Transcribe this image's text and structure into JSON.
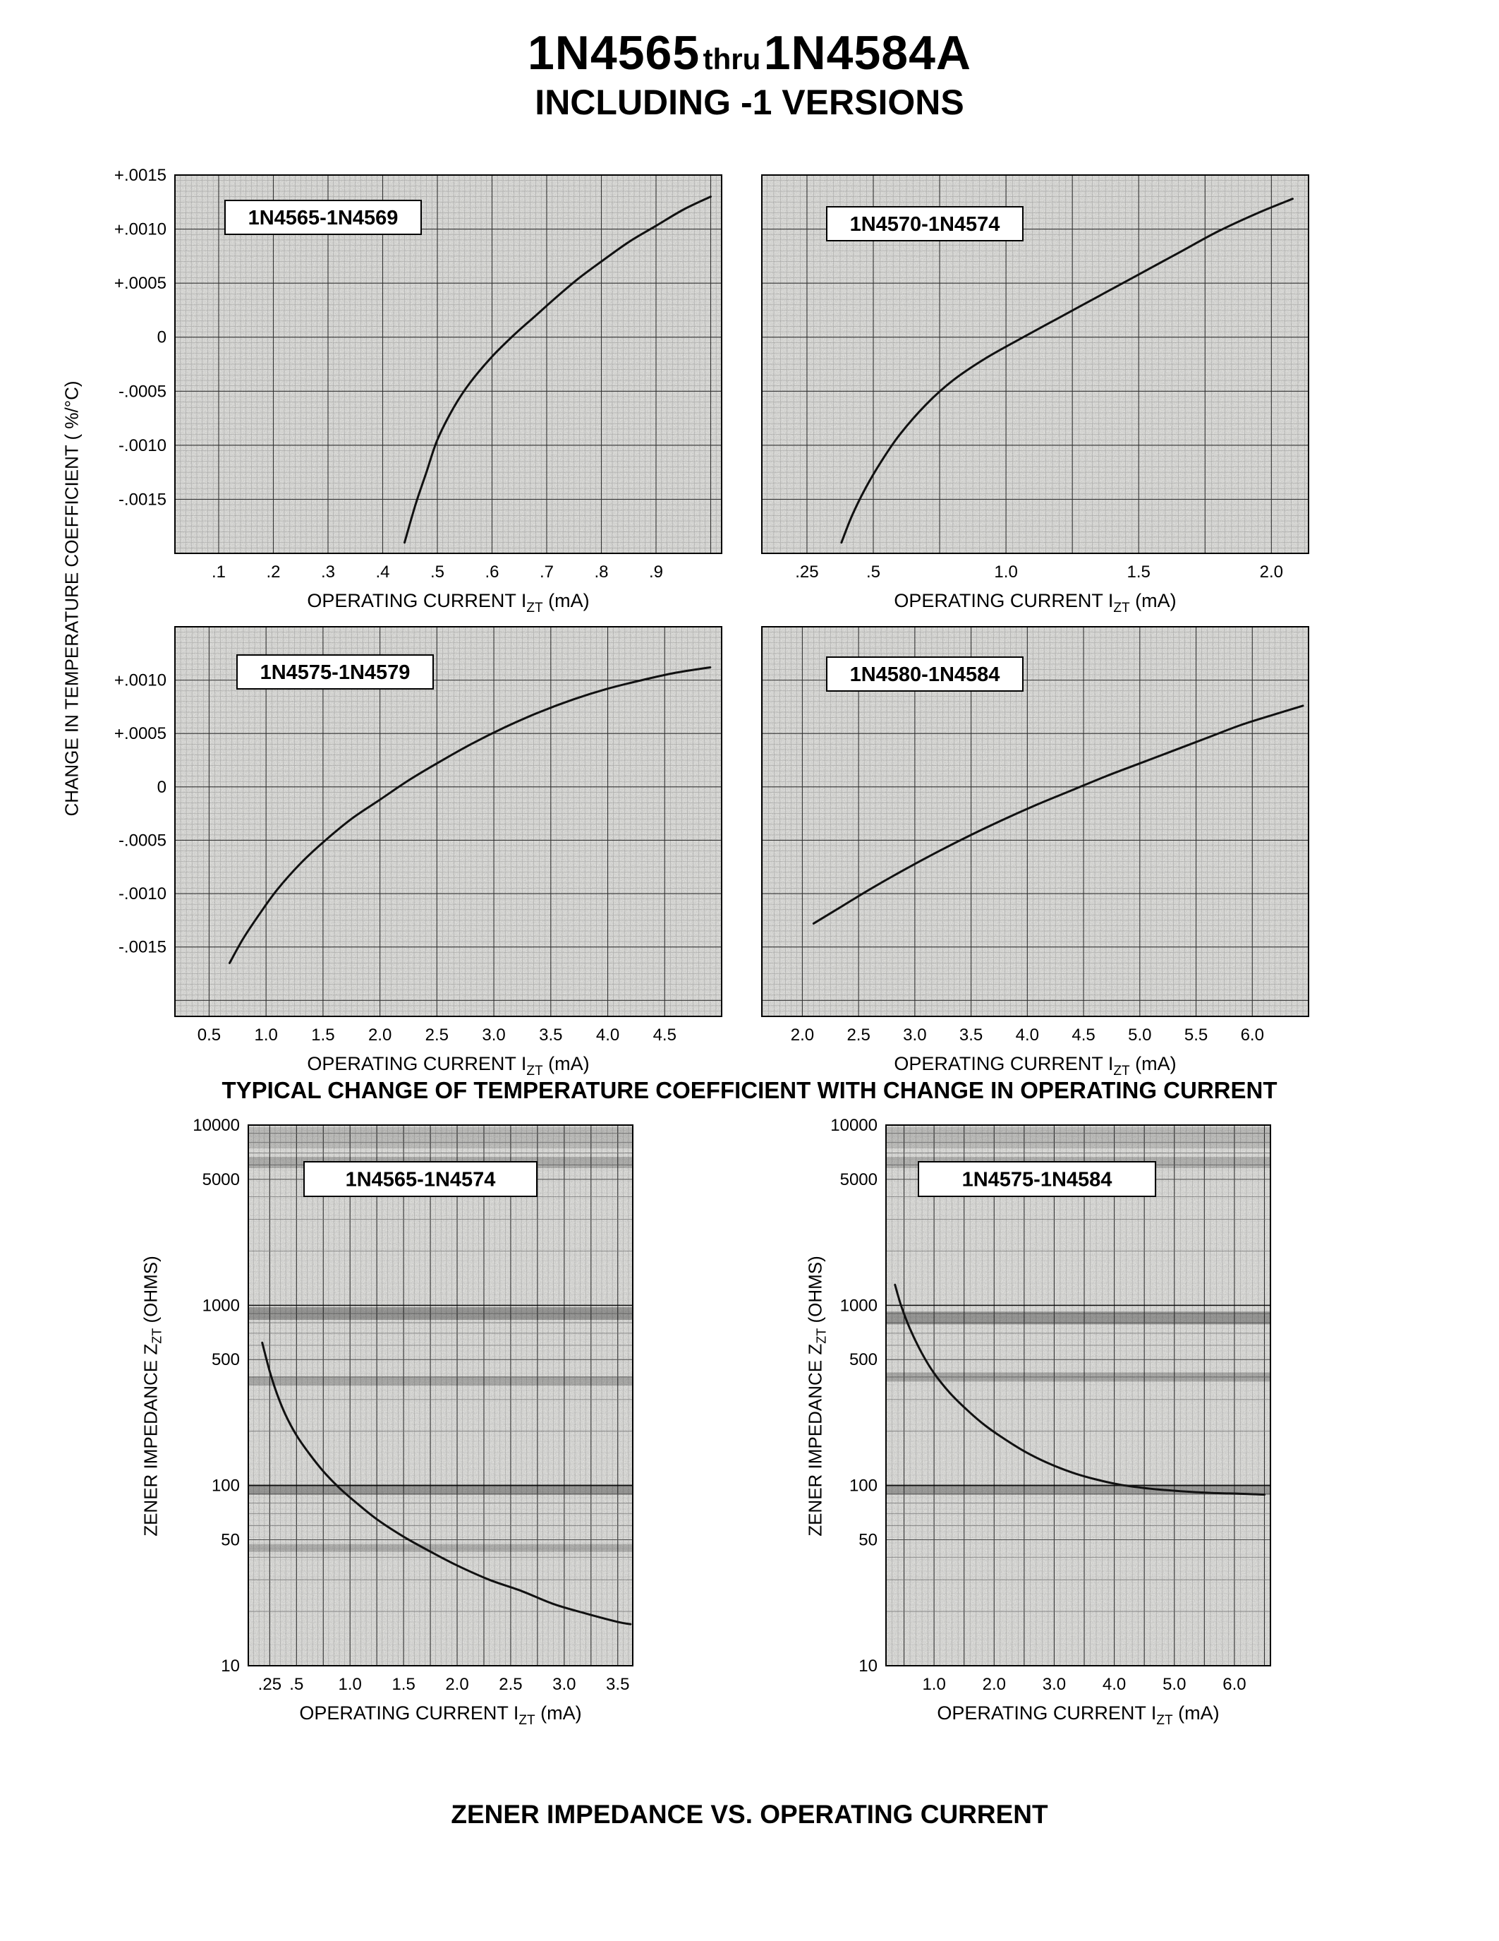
{
  "page": {
    "title_main": "1N4565",
    "title_thru": "thru",
    "title_end": "1N4584A",
    "subtitle": "INCLUDING -1 VERSIONS",
    "caption_tc": "TYPICAL CHANGE OF TEMPERATURE COEFFICIENT WITH CHANGE IN OPERATING CURRENT",
    "caption_zz": "ZENER IMPEDANCE VS. OPERATING CURRENT",
    "tc_y_axis_title": "CHANGE IN TEMPERATURE COEFFICIENT ( %/°C)",
    "zz_y_axis_title": {
      "pre": "ZENER IMPEDANCE Z",
      "sub": "ZT",
      "post": " (OHMS)"
    },
    "x_axis_title": {
      "pre": "OPERATING CURRENT I",
      "sub": "ZT",
      "post": " (mA)"
    }
  },
  "chart_data": [
    {
      "id": "tc1",
      "type": "line",
      "title": "1N4565-1N4569",
      "xlabel": "OPERATING CURRENT IZT (mA)",
      "ylabel": "CHANGE IN TEMPERATURE COEFFICIENT (%/°C)",
      "yscale": "linear",
      "xlim": [
        0.02,
        1.02
      ],
      "ylim": [
        -0.002,
        0.0015
      ],
      "grid": true,
      "xticks": [
        {
          "v": 0.1,
          "label": ".1"
        },
        {
          "v": 0.2,
          "label": ".2"
        },
        {
          "v": 0.3,
          "label": ".3"
        },
        {
          "v": 0.4,
          "label": ".4"
        },
        {
          "v": 0.5,
          "label": ".5"
        },
        {
          "v": 0.6,
          "label": ".6"
        },
        {
          "v": 0.7,
          "label": ".7"
        },
        {
          "v": 0.8,
          "label": ".8"
        },
        {
          "v": 0.9,
          "label": ".9"
        }
      ],
      "yticks": [
        {
          "v": 0.0015,
          "label": "+.0015"
        },
        {
          "v": 0.001,
          "label": "+.0010"
        },
        {
          "v": 0.0005,
          "label": "+.0005"
        },
        {
          "v": 0,
          "label": "0"
        },
        {
          "v": -0.0005,
          "label": "-.0005"
        },
        {
          "v": -0.001,
          "label": "-.0010"
        },
        {
          "v": -0.0015,
          "label": "-.0015"
        }
      ],
      "series": [
        {
          "name": "typical",
          "points": [
            [
              0.44,
              -0.0019
            ],
            [
              0.46,
              -0.00155
            ],
            [
              0.48,
              -0.00125
            ],
            [
              0.5,
              -0.00095
            ],
            [
              0.53,
              -0.00065
            ],
            [
              0.56,
              -0.00042
            ],
            [
              0.6,
              -0.00018
            ],
            [
              0.64,
              2e-05
            ],
            [
              0.68,
              0.0002
            ],
            [
              0.72,
              0.00038
            ],
            [
              0.76,
              0.00055
            ],
            [
              0.8,
              0.0007
            ],
            [
              0.85,
              0.00088
            ],
            [
              0.9,
              0.00103
            ],
            [
              0.95,
              0.00118
            ],
            [
              1.0,
              0.0013
            ]
          ]
        }
      ]
    },
    {
      "id": "tc2",
      "type": "line",
      "title": "1N4570-1N4574",
      "xlabel": "OPERATING CURRENT IZT (mA)",
      "ylabel": "CHANGE IN TEMPERATURE COEFFICIENT (%/°C)",
      "yscale": "linear",
      "xlim": [
        0.08,
        2.14
      ],
      "ylim": [
        -0.002,
        0.0015
      ],
      "grid": true,
      "xticks": [
        {
          "v": 0.25,
          "label": ".25"
        },
        {
          "v": 0.5,
          "label": ".5"
        },
        {
          "v": 1.0,
          "label": "1.0"
        },
        {
          "v": 1.5,
          "label": "1.5"
        },
        {
          "v": 2.0,
          "label": "2.0"
        }
      ],
      "yticks": [],
      "series": [
        {
          "name": "typical",
          "points": [
            [
              0.38,
              -0.0019
            ],
            [
              0.42,
              -0.00165
            ],
            [
              0.47,
              -0.0014
            ],
            [
              0.53,
              -0.00115
            ],
            [
              0.6,
              -0.0009
            ],
            [
              0.7,
              -0.00062
            ],
            [
              0.8,
              -0.0004
            ],
            [
              0.92,
              -0.0002
            ],
            [
              1.05,
              -2e-05
            ],
            [
              1.2,
              0.00018
            ],
            [
              1.35,
              0.00038
            ],
            [
              1.5,
              0.00058
            ],
            [
              1.65,
              0.00078
            ],
            [
              1.8,
              0.00098
            ],
            [
              1.95,
              0.00115
            ],
            [
              2.08,
              0.00128
            ]
          ]
        }
      ]
    },
    {
      "id": "tc3",
      "type": "line",
      "title": "1N4575-1N4579",
      "xlabel": "OPERATING CURRENT IZT (mA)",
      "ylabel": "CHANGE IN TEMPERATURE COEFFICIENT (%/°C)",
      "yscale": "linear",
      "xlim": [
        0.2,
        5.0
      ],
      "ylim": [
        -0.00215,
        0.0015
      ],
      "grid": true,
      "xticks": [
        {
          "v": 0.5,
          "label": "0.5"
        },
        {
          "v": 1.0,
          "label": "1.0"
        },
        {
          "v": 1.5,
          "label": "1.5"
        },
        {
          "v": 2.0,
          "label": "2.0"
        },
        {
          "v": 2.5,
          "label": "2.5"
        },
        {
          "v": 3.0,
          "label": "3.0"
        },
        {
          "v": 3.5,
          "label": "3.5"
        },
        {
          "v": 4.0,
          "label": "4.0"
        },
        {
          "v": 4.5,
          "label": "4.5"
        }
      ],
      "yticks": [
        {
          "v": 0.001,
          "label": "+.0010"
        },
        {
          "v": 0.0005,
          "label": "+.0005"
        },
        {
          "v": 0,
          "label": "0"
        },
        {
          "v": -0.0005,
          "label": "-.0005"
        },
        {
          "v": -0.001,
          "label": "-.0010"
        },
        {
          "v": -0.0015,
          "label": "-.0015"
        }
      ],
      "series": [
        {
          "name": "typical",
          "points": [
            [
              0.68,
              -0.00165
            ],
            [
              0.8,
              -0.00142
            ],
            [
              0.95,
              -0.00118
            ],
            [
              1.1,
              -0.00096
            ],
            [
              1.3,
              -0.00072
            ],
            [
              1.5,
              -0.00052
            ],
            [
              1.75,
              -0.0003
            ],
            [
              2.0,
              -0.00012
            ],
            [
              2.25,
              6e-05
            ],
            [
              2.5,
              0.00022
            ],
            [
              2.8,
              0.0004
            ],
            [
              3.1,
              0.00056
            ],
            [
              3.4,
              0.0007
            ],
            [
              3.7,
              0.00082
            ],
            [
              4.0,
              0.00092
            ],
            [
              4.3,
              0.001
            ],
            [
              4.6,
              0.00107
            ],
            [
              4.9,
              0.00112
            ]
          ]
        }
      ]
    },
    {
      "id": "tc4",
      "type": "line",
      "title": "1N4580-1N4584",
      "xlabel": "OPERATING CURRENT IZT (mA)",
      "ylabel": "CHANGE IN TEMPERATURE COEFFICIENT (%/°C)",
      "yscale": "linear",
      "xlim": [
        1.64,
        6.5
      ],
      "ylim": [
        -0.00215,
        0.0015
      ],
      "grid": true,
      "xticks": [
        {
          "v": 2.0,
          "label": "2.0"
        },
        {
          "v": 2.5,
          "label": "2.5"
        },
        {
          "v": 3.0,
          "label": "3.0"
        },
        {
          "v": 3.5,
          "label": "3.5"
        },
        {
          "v": 4.0,
          "label": "4.0"
        },
        {
          "v": 4.5,
          "label": "4.5"
        },
        {
          "v": 5.0,
          "label": "5.0"
        },
        {
          "v": 5.5,
          "label": "5.5"
        },
        {
          "v": 6.0,
          "label": "6.0"
        }
      ],
      "yticks": [],
      "series": [
        {
          "name": "typical",
          "points": [
            [
              2.1,
              -0.00128
            ],
            [
              2.35,
              -0.00112
            ],
            [
              2.6,
              -0.00096
            ],
            [
              2.9,
              -0.00078
            ],
            [
              3.2,
              -0.00061
            ],
            [
              3.5,
              -0.00045
            ],
            [
              3.8,
              -0.0003
            ],
            [
              4.1,
              -0.00016
            ],
            [
              4.4,
              -3e-05
            ],
            [
              4.7,
              0.0001
            ],
            [
              5.0,
              0.00022
            ],
            [
              5.3,
              0.00034
            ],
            [
              5.6,
              0.00046
            ],
            [
              5.9,
              0.00058
            ],
            [
              6.2,
              0.00068
            ],
            [
              6.45,
              0.00076
            ]
          ]
        }
      ]
    },
    {
      "id": "zz1",
      "type": "line",
      "title": "1N4565-1N4574",
      "xlabel": "OPERATING CURRENT IZT (mA)",
      "ylabel": "ZENER IMPEDANCE ZZT (OHMS)",
      "yscale": "log",
      "xlim": [
        0.05,
        3.64
      ],
      "ylim": [
        10,
        10000
      ],
      "grid": true,
      "xticks": [
        {
          "v": 0.25,
          "label": ".25"
        },
        {
          "v": 0.5,
          "label": ".5"
        },
        {
          "v": 1.0,
          "label": "1.0"
        },
        {
          "v": 1.5,
          "label": "1.5"
        },
        {
          "v": 2.0,
          "label": "2.0"
        },
        {
          "v": 2.5,
          "label": "2.5"
        },
        {
          "v": 3.0,
          "label": "3.0"
        },
        {
          "v": 3.5,
          "label": "3.5"
        }
      ],
      "yticks": [
        {
          "v": 10000,
          "label": "10000"
        },
        {
          "v": 5000,
          "label": "5000"
        },
        {
          "v": 1000,
          "label": "1000"
        },
        {
          "v": 500,
          "label": "500"
        },
        {
          "v": 100,
          "label": "100"
        },
        {
          "v": 50,
          "label": "50"
        },
        {
          "v": 10,
          "label": "10"
        }
      ],
      "series": [
        {
          "name": "typical",
          "points": [
            [
              0.18,
              620
            ],
            [
              0.25,
              430
            ],
            [
              0.32,
              320
            ],
            [
              0.4,
              245
            ],
            [
              0.5,
              190
            ],
            [
              0.62,
              150
            ],
            [
              0.75,
              120
            ],
            [
              0.9,
              97
            ],
            [
              1.05,
              81
            ],
            [
              1.25,
              65
            ],
            [
              1.5,
              52
            ],
            [
              1.75,
              43
            ],
            [
              2.0,
              36
            ],
            [
              2.3,
              30
            ],
            [
              2.6,
              26
            ],
            [
              2.9,
              22
            ],
            [
              3.2,
              19.5
            ],
            [
              3.5,
              17.5
            ],
            [
              3.62,
              17
            ]
          ]
        }
      ]
    },
    {
      "id": "zz2",
      "type": "line",
      "title": "1N4575-1N4584",
      "xlabel": "OPERATING CURRENT IZT (mA)",
      "ylabel": "ZENER IMPEDANCE ZZT (OHMS)",
      "yscale": "log",
      "xlim": [
        0.2,
        6.6
      ],
      "ylim": [
        10,
        10000
      ],
      "grid": true,
      "xticks": [
        {
          "v": 1.0,
          "label": "1.0"
        },
        {
          "v": 2.0,
          "label": "2.0"
        },
        {
          "v": 3.0,
          "label": "3.0"
        },
        {
          "v": 4.0,
          "label": "4.0"
        },
        {
          "v": 5.0,
          "label": "5.0"
        },
        {
          "v": 6.0,
          "label": "6.0"
        }
      ],
      "yticks": [
        {
          "v": 10000,
          "label": "10000"
        },
        {
          "v": 5000,
          "label": "5000"
        },
        {
          "v": 1000,
          "label": "1000"
        },
        {
          "v": 500,
          "label": "500"
        },
        {
          "v": 100,
          "label": "100"
        },
        {
          "v": 50,
          "label": "50"
        },
        {
          "v": 10,
          "label": "10"
        }
      ],
      "series": [
        {
          "name": "typical",
          "points": [
            [
              0.35,
              1300
            ],
            [
              0.45,
              1000
            ],
            [
              0.6,
              740
            ],
            [
              0.8,
              540
            ],
            [
              1.0,
              420
            ],
            [
              1.25,
              330
            ],
            [
              1.5,
              272
            ],
            [
              1.8,
              222
            ],
            [
              2.1,
              188
            ],
            [
              2.5,
              155
            ],
            [
              2.9,
              133
            ],
            [
              3.3,
              118
            ],
            [
              3.7,
              108
            ],
            [
              4.1,
              101
            ],
            [
              4.6,
              96
            ],
            [
              5.1,
              93
            ],
            [
              5.6,
              91
            ],
            [
              6.1,
              90
            ],
            [
              6.5,
              89
            ]
          ]
        }
      ]
    }
  ]
}
